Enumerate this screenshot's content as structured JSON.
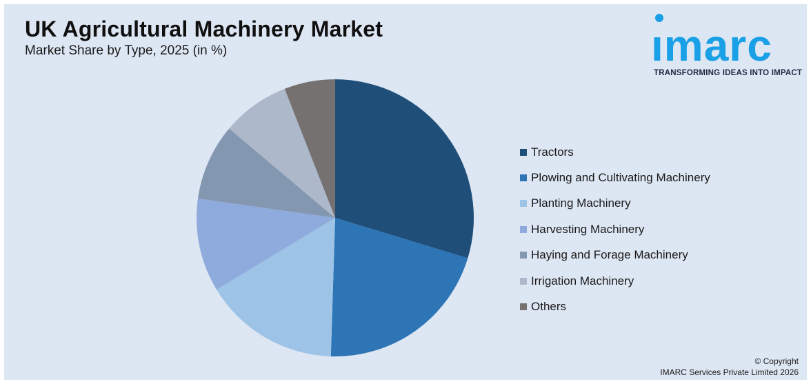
{
  "header": {
    "title": "UK Agricultural Machinery Market",
    "subtitle": "Market Share by Type, 2025 (in %)"
  },
  "logo": {
    "word": "ımarc",
    "tagline": "TRANSFORMING IDEAS INTO IMPACT",
    "color": "#1aa0e6"
  },
  "footer": {
    "line1": "© Copyright",
    "line2": "IMARC Services Private Limited 2026"
  },
  "chart_data": {
    "type": "pie",
    "title": "UK Agricultural Machinery Market",
    "subtitle": "Market Share by Type, 2025 (in %)",
    "legend_position": "right",
    "start_angle_deg": 0,
    "direction": "clockwise",
    "slices": [
      {
        "label": "Tractors",
        "value": 30,
        "color": "#1f4e79"
      },
      {
        "label": "Plowing and Cultivating Machinery",
        "value": 21,
        "color": "#2e75b6"
      },
      {
        "label": "Planting Machinery",
        "value": 16,
        "color": "#9dc3e6"
      },
      {
        "label": "Harvesting Machinery",
        "value": 11,
        "color": "#8faadc"
      },
      {
        "label": "Haying and Forage Machinery",
        "value": 9,
        "color": "#8497b0"
      },
      {
        "label": "Irrigation Machinery",
        "value": 8,
        "color": "#adb9ca"
      },
      {
        "label": "Others",
        "value": 6,
        "color": "#767171"
      }
    ]
  }
}
